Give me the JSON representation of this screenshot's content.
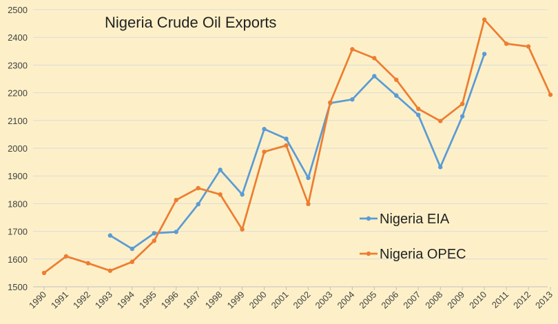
{
  "chart_data": {
    "type": "line",
    "title": "Nigeria Crude Oil Exports",
    "xlabel": "",
    "ylabel": "",
    "ylim": [
      1500,
      2500
    ],
    "y_ticks": [
      1500,
      1600,
      1700,
      1800,
      1900,
      2000,
      2100,
      2200,
      2300,
      2400,
      2500
    ],
    "categories": [
      "1990",
      "1991",
      "1992",
      "1993",
      "1994",
      "1995",
      "1996",
      "1997",
      "1998",
      "1999",
      "2000",
      "2001",
      "2002",
      "2003",
      "2004",
      "2005",
      "2006",
      "2007",
      "2008",
      "2009",
      "2010",
      "2011",
      "2012",
      "2013"
    ],
    "grid": true,
    "legend_position": "right",
    "series": [
      {
        "name": "Nigeria EIA",
        "color": "#5b9bd5",
        "values": [
          null,
          null,
          null,
          1685,
          1637,
          1693,
          1698,
          1798,
          1922,
          1833,
          2069,
          2034,
          1893,
          2163,
          2176,
          2260,
          2190,
          2120,
          1932,
          2115,
          2340,
          null,
          null,
          null
        ]
      },
      {
        "name": "Nigeria OPEC",
        "color": "#ed7d31",
        "values": [
          1550,
          1610,
          1585,
          1558,
          1590,
          1666,
          1813,
          1856,
          1833,
          1707,
          1987,
          2010,
          1799,
          2165,
          2357,
          2325,
          2247,
          2142,
          2098,
          2160,
          2464,
          2377,
          2367,
          2193
        ]
      }
    ]
  }
}
